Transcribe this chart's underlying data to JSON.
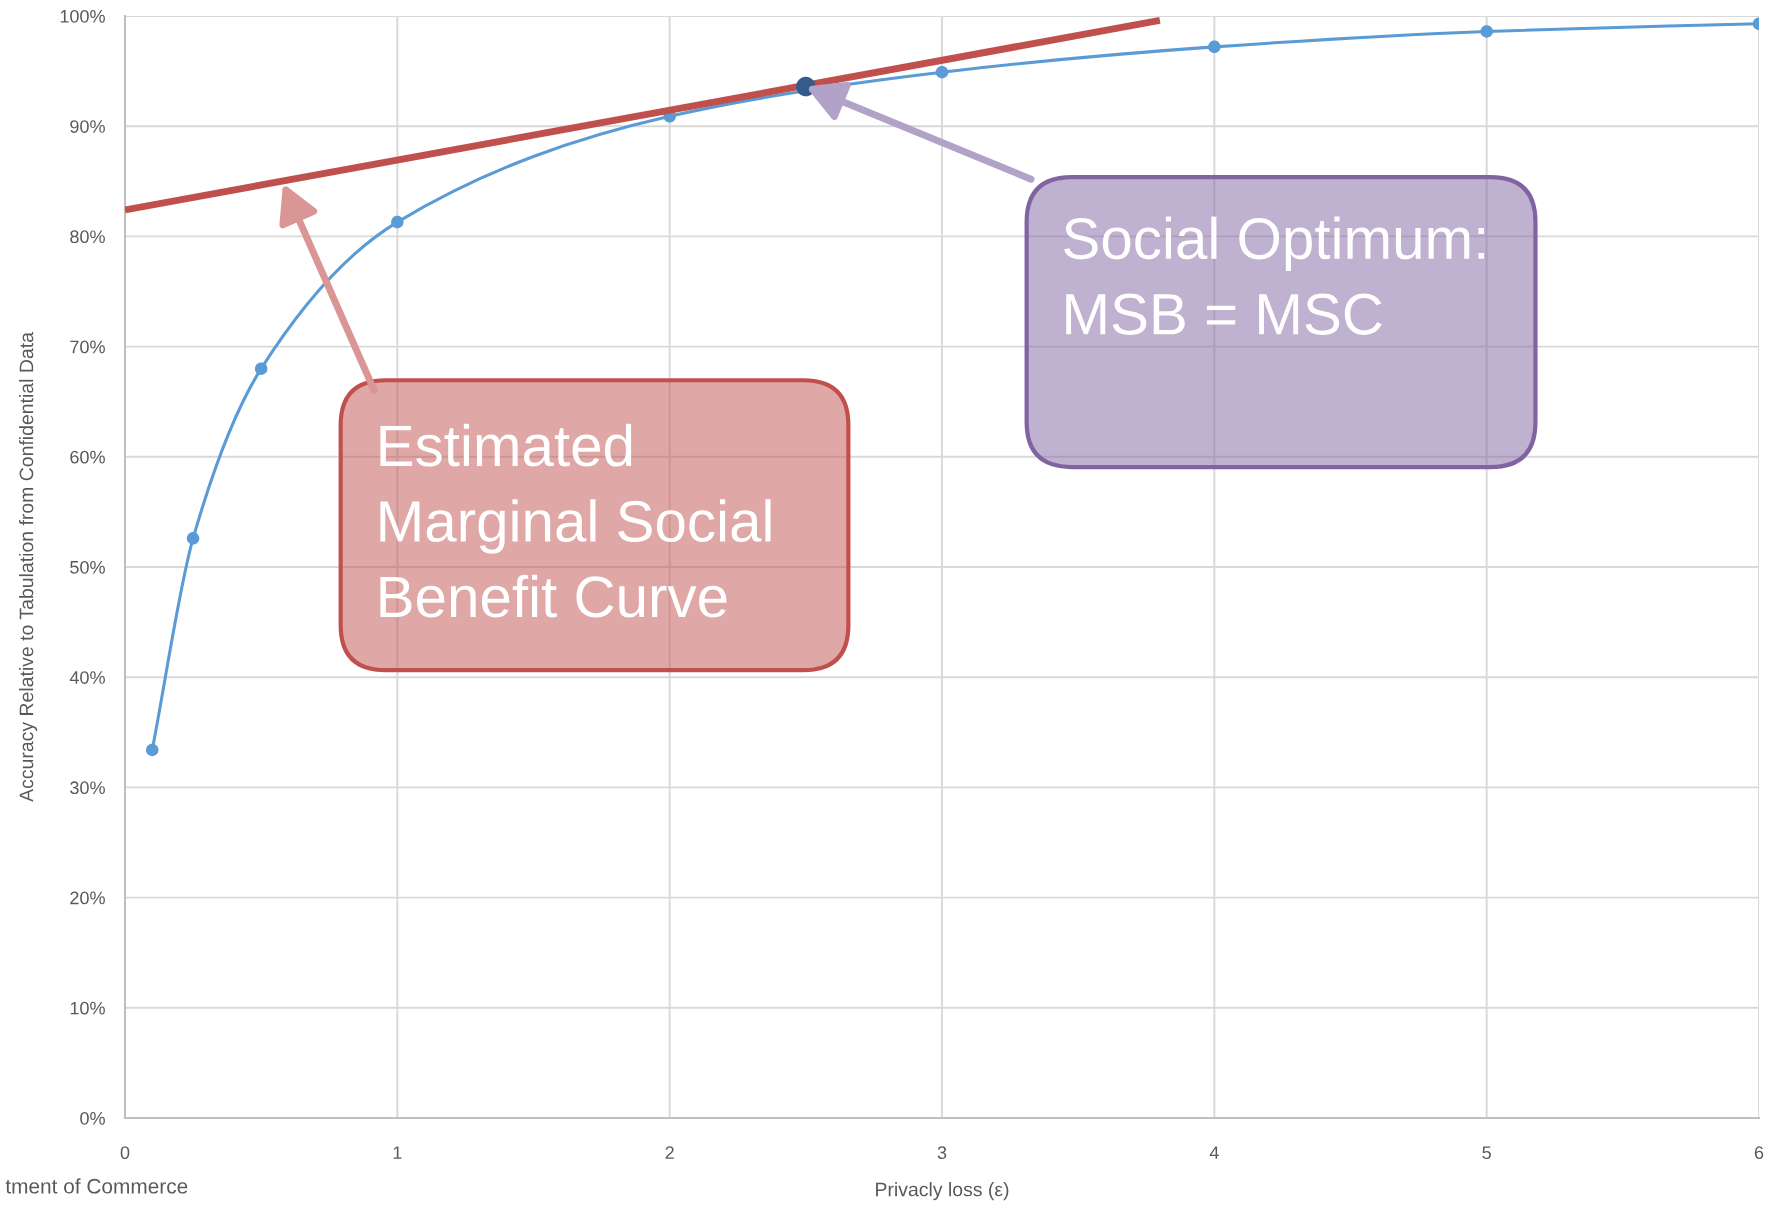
{
  "chart_data": {
    "type": "line",
    "xlabel": "Privacly loss (ε)",
    "ylabel": "Accuracy Relative to Tabulation from Confidential Data",
    "xlim": [
      0,
      6
    ],
    "xticks": [
      0,
      1,
      2,
      3,
      4,
      5,
      6
    ],
    "ylim": [
      0,
      100
    ],
    "yticks": [
      {
        "value": 0,
        "label": "0%"
      },
      {
        "value": 10,
        "label": "10%"
      },
      {
        "value": 20,
        "label": "20%"
      },
      {
        "value": 30,
        "label": "30%"
      },
      {
        "value": 40,
        "label": "40%"
      },
      {
        "value": 50,
        "label": "50%"
      },
      {
        "value": 60,
        "label": "60%"
      },
      {
        "value": 70,
        "label": "70%"
      },
      {
        "value": 80,
        "label": "80%"
      },
      {
        "value": 90,
        "label": "90%"
      },
      {
        "value": 100,
        "label": "100%"
      }
    ],
    "grid": true,
    "marker": "circle",
    "series": [
      {
        "x": [
          0.1,
          0.25,
          0.5,
          1,
          2,
          3,
          4,
          5,
          6
        ],
        "values": [
          33.4,
          52.6,
          68.0,
          81.3,
          90.9,
          94.9,
          97.2,
          98.6,
          99.3
        ],
        "color": "#5b9bd5"
      },
      {
        "x": [
          0,
          3.8
        ],
        "values": [
          82.4,
          99.6
        ],
        "color": "#c0504d",
        "marker": "none"
      },
      {
        "type": "scatter",
        "x": [
          2.5
        ],
        "values": [
          93.6
        ],
        "color": "#335b8c"
      }
    ],
    "annotations": [
      "Estimated\nMarginal Social\nBenefit Curve",
      {
        "text": "Social Optimum:\nMSB = MSC",
        "x": 2.5,
        "y": 93.6
      },
      "tment of Commerce"
    ]
  }
}
